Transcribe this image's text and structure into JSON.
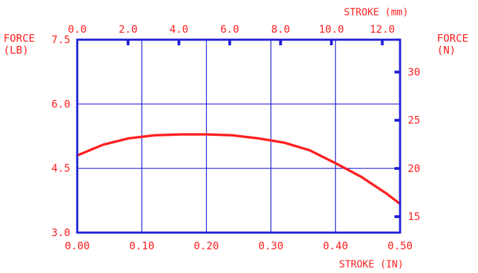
{
  "chart_data": {
    "type": "line",
    "x_bottom": {
      "label": "STROKE (IN)",
      "ticks": [
        "0.00",
        "0.10",
        "0.20",
        "0.30",
        "0.40",
        "0.50"
      ],
      "range": [
        0,
        0.5
      ]
    },
    "x_top": {
      "label": "STROKE (mm)",
      "ticks": [
        "0.0",
        "2.0",
        "4.0",
        "6.0",
        "8.0",
        "10.0",
        "12.0"
      ],
      "tick_values": [
        0,
        2,
        4,
        6,
        8,
        10,
        12
      ]
    },
    "y_left": {
      "label_line1": "FORCE",
      "label_line2": "(LB)",
      "ticks": [
        "3.0",
        "4.5",
        "6.0",
        "7.5"
      ],
      "range": [
        3.0,
        7.5
      ]
    },
    "y_right": {
      "label_line1": "FORCE",
      "label_line2": "(N)",
      "ticks": [
        "15",
        "20",
        "25",
        "30"
      ],
      "tick_values": [
        15,
        20,
        25,
        30
      ]
    },
    "grid": true,
    "colors": {
      "curve": "#ff1f1f",
      "grid": "#1f1fd6",
      "frame": "#1f1fd6",
      "text": "#ff1f1f"
    },
    "series": [
      {
        "x": [
          0.0,
          0.04,
          0.08,
          0.12,
          0.16,
          0.2,
          0.24,
          0.28,
          0.32,
          0.36,
          0.4,
          0.44,
          0.48,
          0.5
        ],
        "y": [
          4.8,
          5.05,
          5.2,
          5.27,
          5.29,
          5.29,
          5.27,
          5.2,
          5.1,
          4.92,
          4.62,
          4.3,
          3.9,
          3.67
        ]
      }
    ]
  }
}
